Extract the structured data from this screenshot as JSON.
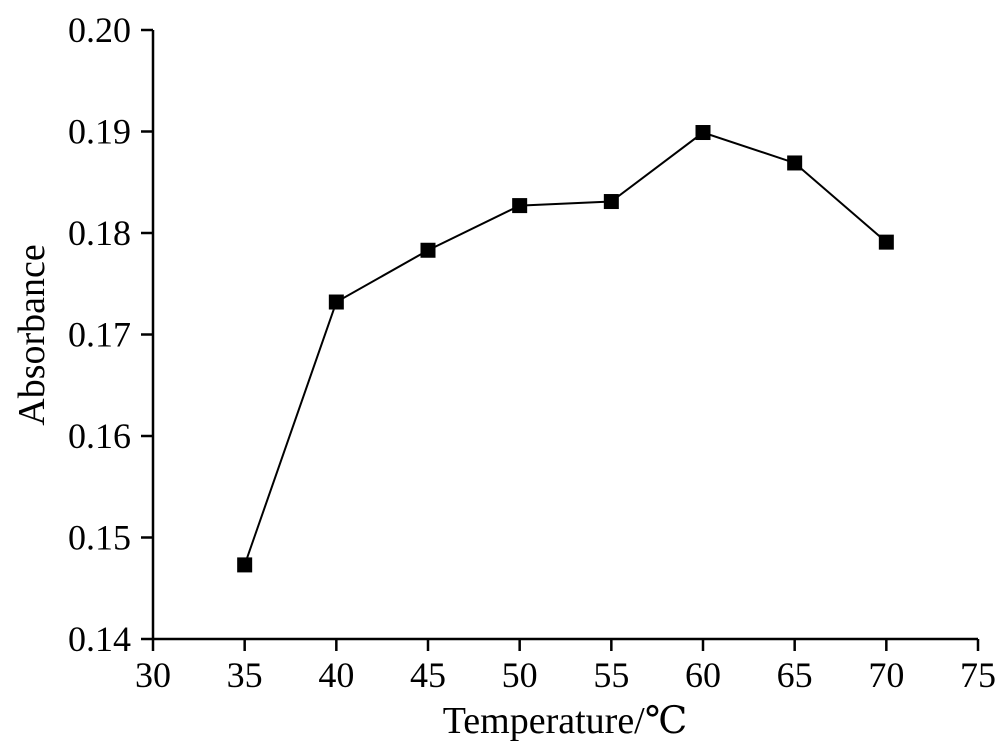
{
  "chart_data": {
    "type": "line",
    "title": "",
    "xlabel": "Temperature/℃",
    "ylabel": "Absorbance",
    "xlim": [
      30,
      75
    ],
    "ylim": [
      0.14,
      0.2
    ],
    "x_ticks": [
      30,
      35,
      40,
      45,
      50,
      55,
      60,
      65,
      70,
      75
    ],
    "y_ticks": [
      0.14,
      0.15,
      0.16,
      0.17,
      0.18,
      0.19,
      0.2
    ],
    "x_tick_labels": [
      "30",
      "35",
      "40",
      "45",
      "50",
      "55",
      "60",
      "65",
      "70",
      "75"
    ],
    "y_tick_labels": [
      "0.14",
      "0.15",
      "0.16",
      "0.17",
      "0.18",
      "0.19",
      "0.20"
    ],
    "grid": false,
    "marker": "square",
    "line_color": "#000000",
    "marker_color": "#000000",
    "series": [
      {
        "x": [
          35,
          40,
          45,
          50,
          55,
          60,
          65,
          70
        ],
        "values": [
          0.1473,
          0.1732,
          0.1783,
          0.1827,
          0.1831,
          0.1899,
          0.1869,
          0.1791
        ]
      }
    ]
  }
}
